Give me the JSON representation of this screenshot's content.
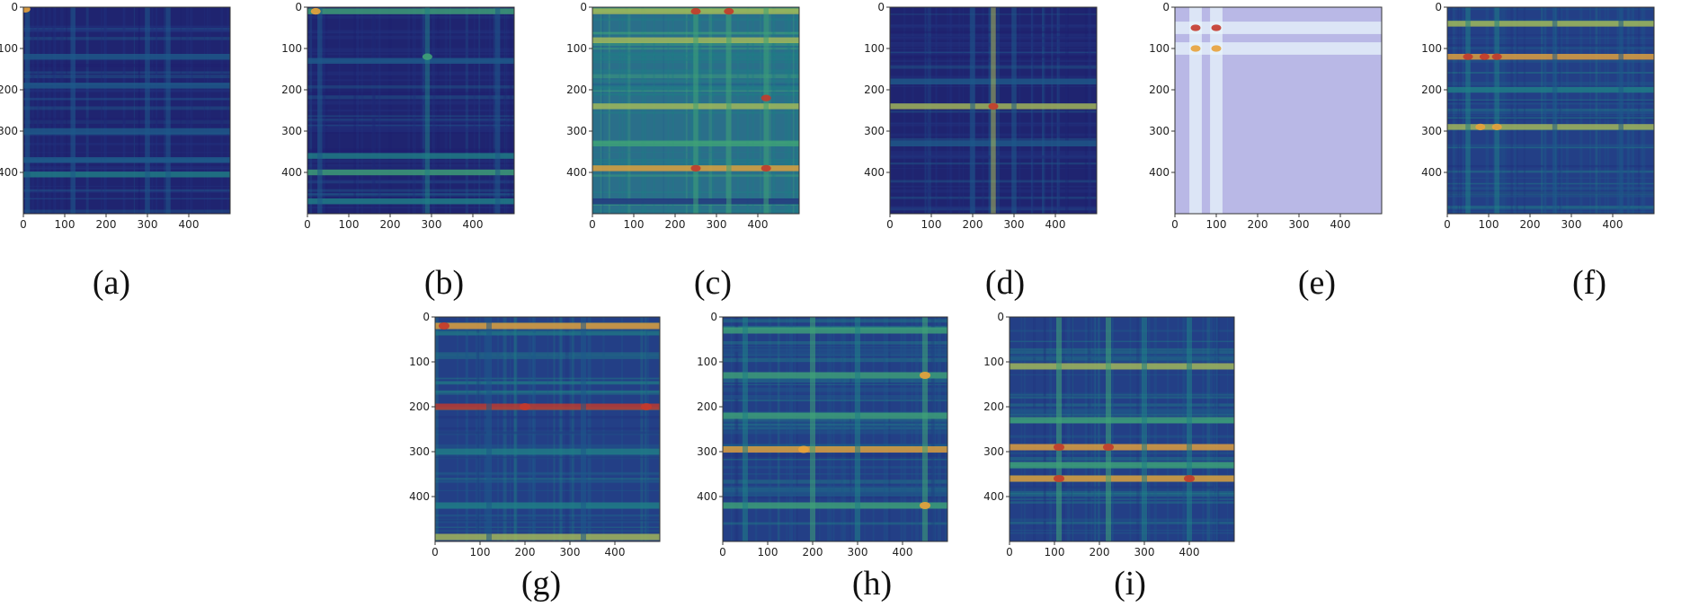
{
  "figure": {
    "background": "#ffffff"
  },
  "colormap": [
    "#1f1e6e",
    "#22337f",
    "#1e5a8a",
    "#1f7f86",
    "#3fa277",
    "#a9bb57",
    "#e8a23a",
    "#c43a2b"
  ],
  "chart_data": [
    {
      "id": "a",
      "type": "heatmap",
      "caption": "(a)",
      "xticks": [
        "0",
        "100",
        "200",
        "300",
        "400"
      ],
      "yticks": [
        "0",
        "100",
        "200",
        "300",
        "400"
      ],
      "xlim": [
        0,
        500
      ],
      "ylim": [
        0,
        500
      ],
      "intensity": "low",
      "tint": "",
      "rows": [
        {
          "pos": 120,
          "v": 0.3
        },
        {
          "pos": 190,
          "v": 0.35
        },
        {
          "pos": 300,
          "v": 0.3
        },
        {
          "pos": 370,
          "v": 0.35
        },
        {
          "pos": 405,
          "v": 0.45
        }
      ],
      "cols": [
        {
          "pos": 10,
          "v": 0.35
        },
        {
          "pos": 120,
          "v": 0.25
        },
        {
          "pos": 300,
          "v": 0.3
        },
        {
          "pos": 350,
          "v": 0.25
        }
      ],
      "hotspots": [
        {
          "x": 5,
          "y": 5,
          "v": 0.85
        }
      ]
    },
    {
      "id": "b",
      "type": "heatmap",
      "caption": "(b)",
      "xticks": [
        "0",
        "100",
        "200",
        "300",
        "400"
      ],
      "yticks": [
        "0",
        "100",
        "200",
        "300",
        "400"
      ],
      "xlim": [
        0,
        500
      ],
      "ylim": [
        0,
        500
      ],
      "intensity": "low",
      "tint": "",
      "rows": [
        {
          "pos": 10,
          "v": 0.55
        },
        {
          "pos": 130,
          "v": 0.35
        },
        {
          "pos": 360,
          "v": 0.45
        },
        {
          "pos": 400,
          "v": 0.5
        },
        {
          "pos": 470,
          "v": 0.4
        }
      ],
      "cols": [
        {
          "pos": 30,
          "v": 0.35
        },
        {
          "pos": 290,
          "v": 0.45
        },
        {
          "pos": 460,
          "v": 0.25
        }
      ],
      "hotspots": [
        {
          "x": 20,
          "y": 10,
          "v": 0.9
        },
        {
          "x": 290,
          "y": 120,
          "v": 0.55
        }
      ]
    },
    {
      "id": "c",
      "type": "heatmap",
      "caption": "(c)",
      "xticks": [
        "0",
        "100",
        "200",
        "300",
        "400"
      ],
      "yticks": [
        "0",
        "100",
        "200",
        "300",
        "400"
      ],
      "xlim": [
        0,
        500
      ],
      "ylim": [
        0,
        500
      ],
      "intensity": "high",
      "tint": "",
      "rows": [
        {
          "pos": 10,
          "v": 0.75
        },
        {
          "pos": 80,
          "v": 0.7
        },
        {
          "pos": 240,
          "v": 0.75
        },
        {
          "pos": 330,
          "v": 0.6
        },
        {
          "pos": 390,
          "v": 0.85
        },
        {
          "pos": 470,
          "v": 0.2
        }
      ],
      "cols": [
        {
          "pos": 250,
          "v": 0.6
        },
        {
          "pos": 330,
          "v": 0.55
        },
        {
          "pos": 420,
          "v": 0.6
        }
      ],
      "hotspots": [
        {
          "x": 250,
          "y": 10,
          "v": 1
        },
        {
          "x": 330,
          "y": 10,
          "v": 0.95
        },
        {
          "x": 250,
          "y": 390,
          "v": 1
        },
        {
          "x": 420,
          "y": 390,
          "v": 1
        },
        {
          "x": 420,
          "y": 220,
          "v": 0.95
        }
      ]
    },
    {
      "id": "d",
      "type": "heatmap",
      "caption": "(d)",
      "xticks": [
        "0",
        "100",
        "200",
        "300",
        "400"
      ],
      "yticks": [
        "0",
        "100",
        "200",
        "300",
        "400"
      ],
      "xlim": [
        0,
        500
      ],
      "ylim": [
        0,
        500
      ],
      "intensity": "low",
      "tint": "",
      "rows": [
        {
          "pos": 240,
          "v": 0.65
        },
        {
          "pos": 180,
          "v": 0.3
        },
        {
          "pos": 330,
          "v": 0.35
        }
      ],
      "cols": [
        {
          "pos": 250,
          "v": 0.65
        },
        {
          "pos": 200,
          "v": 0.3
        },
        {
          "pos": 300,
          "v": 0.3
        }
      ],
      "hotspots": [
        {
          "x": 250,
          "y": 240,
          "v": 1
        }
      ]
    },
    {
      "id": "e",
      "type": "heatmap",
      "caption": "(e)",
      "xticks": [
        "0",
        "100",
        "200",
        "300",
        "400"
      ],
      "yticks": [
        "0",
        "100",
        "200",
        "300",
        "400"
      ],
      "xlim": [
        0,
        500
      ],
      "ylim": [
        0,
        500
      ],
      "intensity": "faded",
      "tint": "#b9b8e6",
      "rows": [
        {
          "pos": 50,
          "v": 0.7
        },
        {
          "pos": 100,
          "v": 0.6
        }
      ],
      "cols": [
        {
          "pos": 50,
          "v": 0.7
        },
        {
          "pos": 100,
          "v": 0.6
        }
      ],
      "hotspots": [
        {
          "x": 50,
          "y": 50,
          "v": 1
        },
        {
          "x": 100,
          "y": 50,
          "v": 0.95
        },
        {
          "x": 50,
          "y": 100,
          "v": 0.9
        },
        {
          "x": 100,
          "y": 100,
          "v": 0.9
        }
      ]
    },
    {
      "id": "f",
      "type": "heatmap",
      "caption": "(f)",
      "xticks": [
        "0",
        "100",
        "200",
        "300",
        "400"
      ],
      "yticks": [
        "0",
        "100",
        "200",
        "300",
        "400"
      ],
      "xlim": [
        0,
        500
      ],
      "ylim": [
        0,
        500
      ],
      "intensity": "medium",
      "tint": "",
      "rows": [
        {
          "pos": 40,
          "v": 0.75
        },
        {
          "pos": 120,
          "v": 0.8
        },
        {
          "pos": 290,
          "v": 0.75
        },
        {
          "pos": 200,
          "v": 0.45
        }
      ],
      "cols": [
        {
          "pos": 50,
          "v": 0.45
        },
        {
          "pos": 120,
          "v": 0.45
        },
        {
          "pos": 260,
          "v": 0.35
        },
        {
          "pos": 420,
          "v": 0.35
        }
      ],
      "hotspots": [
        {
          "x": 50,
          "y": 120,
          "v": 1
        },
        {
          "x": 90,
          "y": 120,
          "v": 0.95
        },
        {
          "x": 120,
          "y": 120,
          "v": 0.95
        },
        {
          "x": 80,
          "y": 290,
          "v": 0.9
        },
        {
          "x": 120,
          "y": 290,
          "v": 0.9
        }
      ]
    },
    {
      "id": "g",
      "type": "heatmap",
      "caption": "(g)",
      "xticks": [
        "0",
        "100",
        "200",
        "300",
        "400"
      ],
      "yticks": [
        "0",
        "100",
        "200",
        "300",
        "400"
      ],
      "xlim": [
        0,
        500
      ],
      "ylim": [
        0,
        500
      ],
      "intensity": "medium",
      "tint": "",
      "rows": [
        {
          "pos": 20,
          "v": 0.8
        },
        {
          "pos": 200,
          "v": 0.95
        },
        {
          "pos": 300,
          "v": 0.45
        },
        {
          "pos": 420,
          "v": 0.4
        },
        {
          "pos": 490,
          "v": 0.75
        }
      ],
      "cols": [
        {
          "pos": 120,
          "v": 0.35
        },
        {
          "pos": 330,
          "v": 0.3
        }
      ],
      "hotspots": [
        {
          "x": 20,
          "y": 20,
          "v": 1
        },
        {
          "x": 200,
          "y": 200,
          "v": 0.95
        },
        {
          "x": 470,
          "y": 200,
          "v": 0.95
        }
      ]
    },
    {
      "id": "h",
      "type": "heatmap",
      "caption": "(h)",
      "xticks": [
        "0",
        "100",
        "200",
        "300",
        "400"
      ],
      "yticks": [
        "0",
        "100",
        "200",
        "300",
        "400"
      ],
      "xlim": [
        0,
        500
      ],
      "ylim": [
        0,
        500
      ],
      "intensity": "medium",
      "tint": "",
      "rows": [
        {
          "pos": 30,
          "v": 0.55
        },
        {
          "pos": 130,
          "v": 0.6
        },
        {
          "pos": 220,
          "v": 0.55
        },
        {
          "pos": 295,
          "v": 0.85
        },
        {
          "pos": 420,
          "v": 0.55
        }
      ],
      "cols": [
        {
          "pos": 50,
          "v": 0.45
        },
        {
          "pos": 200,
          "v": 0.5
        },
        {
          "pos": 300,
          "v": 0.4
        },
        {
          "pos": 450,
          "v": 0.5
        }
      ],
      "hotspots": [
        {
          "x": 450,
          "y": 130,
          "v": 0.9
        },
        {
          "x": 450,
          "y": 420,
          "v": 0.9
        },
        {
          "x": 180,
          "y": 295,
          "v": 0.85
        }
      ]
    },
    {
      "id": "i",
      "type": "heatmap",
      "caption": "(i)",
      "xticks": [
        "0",
        "100",
        "200",
        "300",
        "400"
      ],
      "yticks": [
        "0",
        "100",
        "200",
        "300",
        "400"
      ],
      "xlim": [
        0,
        500
      ],
      "ylim": [
        0,
        500
      ],
      "intensity": "medium",
      "tint": "",
      "rows": [
        {
          "pos": 110,
          "v": 0.65
        },
        {
          "pos": 230,
          "v": 0.55
        },
        {
          "pos": 290,
          "v": 0.9
        },
        {
          "pos": 330,
          "v": 0.6
        },
        {
          "pos": 360,
          "v": 0.85
        }
      ],
      "cols": [
        {
          "pos": 110,
          "v": 0.5
        },
        {
          "pos": 220,
          "v": 0.5
        },
        {
          "pos": 300,
          "v": 0.45
        },
        {
          "pos": 400,
          "v": 0.45
        }
      ],
      "hotspots": [
        {
          "x": 110,
          "y": 290,
          "v": 1
        },
        {
          "x": 220,
          "y": 290,
          "v": 1
        },
        {
          "x": 110,
          "y": 360,
          "v": 0.95
        },
        {
          "x": 400,
          "y": 360,
          "v": 0.95
        }
      ]
    }
  ]
}
